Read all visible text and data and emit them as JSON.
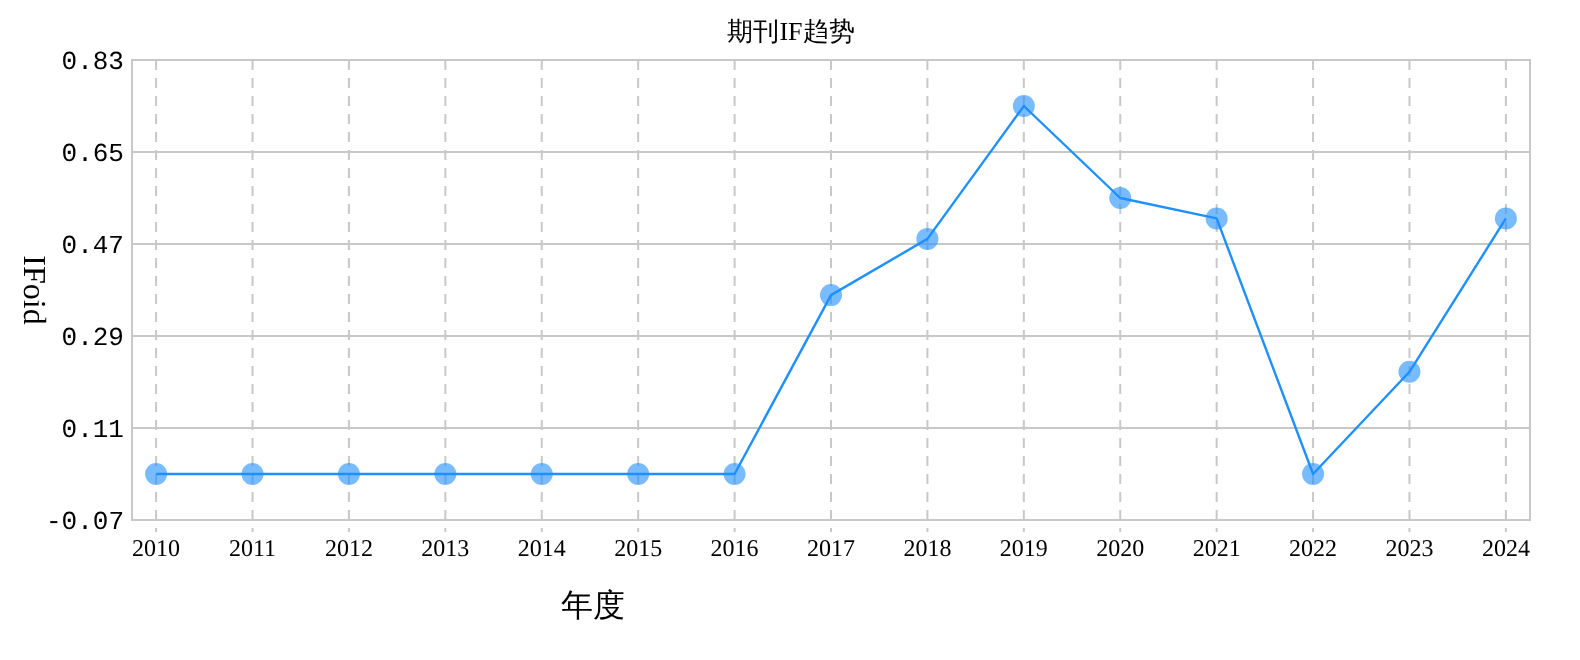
{
  "chart_data": {
    "type": "line",
    "title": "期刊IF趋势",
    "xlabel": "年度",
    "ylabel": "IFoid",
    "categories": [
      "2010",
      "2011",
      "2012",
      "2013",
      "2014",
      "2015",
      "2016",
      "2017",
      "2018",
      "2019",
      "2020",
      "2021",
      "2022",
      "2023",
      "2024"
    ],
    "series": [
      {
        "color": "#1e90ff",
        "values": [
          0.02,
          0.02,
          0.02,
          0.02,
          0.02,
          0.02,
          0.02,
          0.37,
          0.48,
          0.74,
          0.56,
          0.52,
          0.02,
          0.22,
          0.52
        ]
      }
    ],
    "ylim": [
      -0.07,
      0.83
    ],
    "yticks": [
      {
        "value": -0.07,
        "label": "-0.07"
      },
      {
        "value": 0.11,
        "label": "0.11"
      },
      {
        "value": 0.29,
        "label": "0.29"
      },
      {
        "value": 0.47,
        "label": "0.47"
      },
      {
        "value": 0.65,
        "label": "0.65"
      },
      {
        "value": 0.83,
        "label": "0.83"
      }
    ],
    "grid": true,
    "marker": "circle",
    "line_style": "solid"
  }
}
